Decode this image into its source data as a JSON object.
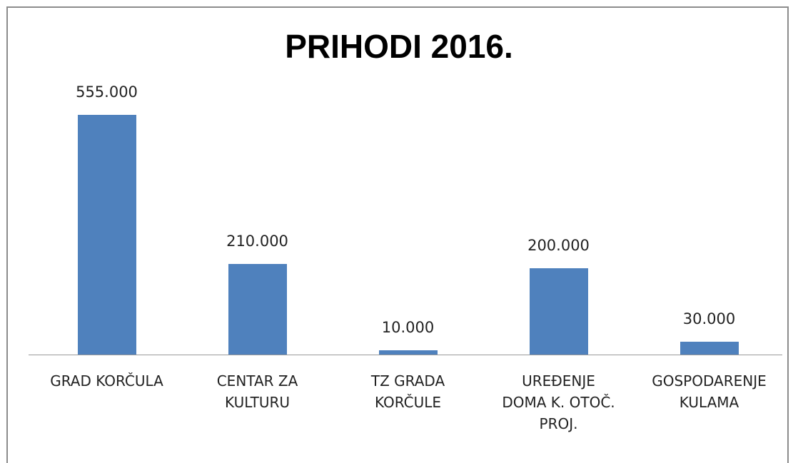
{
  "chart_data": {
    "type": "bar",
    "title": "PRIHODI 2016.",
    "categories": [
      "GRAD KORČULA",
      "CENTAR ZA\nKULTURU",
      "TZ GRADA\nKORČULE",
      "UREĐENJE\nDOMA K. OTOČ.\nPROJ.",
      "GOSPODARENJE\nKULAMA"
    ],
    "values": [
      555000,
      210000,
      10000,
      200000,
      30000
    ],
    "value_labels": [
      "555.000",
      "210.000",
      "10.000",
      "200.000",
      "30.000"
    ],
    "color": "#4f81bd"
  }
}
